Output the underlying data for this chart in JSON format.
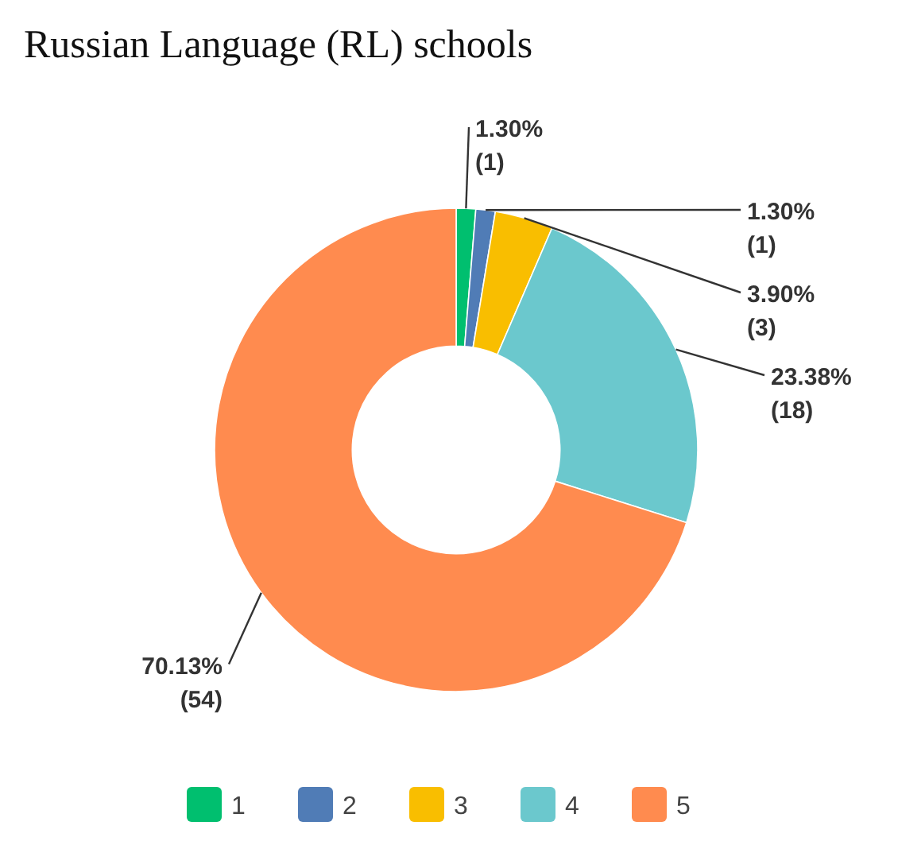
{
  "chart_data": {
    "type": "donut",
    "title": "Russian Language (RL) schools",
    "categories": [
      "1",
      "2",
      "3",
      "4",
      "5"
    ],
    "values": [
      1,
      1,
      3,
      18,
      54
    ],
    "value_labels": [
      "1.30%\n(1)",
      "1.30%\n(1)",
      "3.90%\n(3)",
      "23.38%\n(18)",
      "70.13%\n(54)"
    ],
    "colors": [
      "#00bf6f",
      "#507cb6",
      "#f9be00",
      "#6bc8cd",
      "#ff8b4f"
    ],
    "legend": "bottom"
  }
}
